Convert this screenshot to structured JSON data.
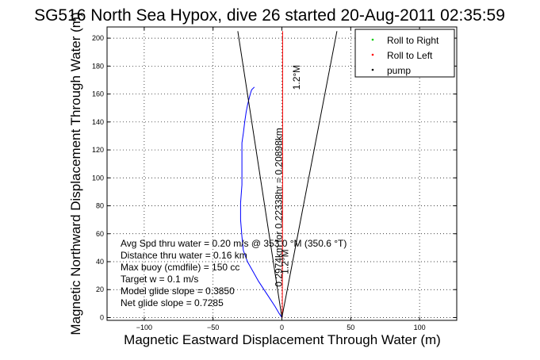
{
  "chart_data": {
    "type": "line",
    "title": "SG516 North Sea Hypox, dive 26 started 20-Aug-2011 02:35:59",
    "xlabel": "Magnetic Eastward Displacement Through Water (m)",
    "ylabel": "Magnetic Northward Displacement Through Water (m)",
    "xlim": [
      -127,
      127
    ],
    "ylim": [
      -2,
      208
    ],
    "xticks": [
      -100,
      -50,
      0,
      50,
      100
    ],
    "xtick_labels": [
      "−100",
      "−50",
      "0",
      "50",
      "100"
    ],
    "yticks": [
      0,
      20,
      40,
      60,
      80,
      100,
      120,
      140,
      160,
      180,
      200
    ],
    "ytick_labels": [
      "0",
      "20",
      "40",
      "60",
      "80",
      "100",
      "120",
      "140",
      "160",
      "180",
      "200"
    ],
    "grid": true,
    "legend_position": "top-right",
    "legend": [
      {
        "label": "Roll to Right",
        "color": "#00cc00"
      },
      {
        "label": "Roll to Left",
        "color": "#ff0000"
      },
      {
        "label": "pump",
        "color": "#000000"
      }
    ],
    "series": [
      {
        "color": "#0000ff",
        "x": [
          0,
          -2,
          -5,
          -9,
          -13,
          -17,
          -21,
          -25,
          -28,
          -29,
          -30,
          -30,
          -29,
          -29,
          -29,
          -29,
          -28,
          -27,
          -26,
          -25,
          -24,
          -23,
          -22,
          -20
        ],
        "y": [
          0,
          3,
          8,
          14,
          20,
          26,
          33,
          40,
          48,
          58,
          70,
          82,
          95,
          105,
          115,
          125,
          132,
          140,
          147,
          152,
          156,
          160,
          163,
          165
        ]
      },
      {
        "color": "#ff0000",
        "x": [
          0.3,
          0.4,
          0.5,
          0.5,
          0.5
        ],
        "y": [
          0,
          50,
          100,
          150,
          205
        ]
      },
      {
        "color": "#000000",
        "x": [
          0,
          40
        ],
        "y": [
          0,
          205
        ]
      },
      {
        "color": "#000000",
        "x": [
          0,
          -32
        ],
        "y": [
          0,
          205
        ]
      }
    ],
    "annotations": [
      {
        "text": "0.2974km for 0.22338hr = 0.20898km",
        "x": 0,
        "y": 22,
        "rotation": -90
      },
      {
        "text": "1.2°M",
        "x": 4.5,
        "y": 31,
        "rotation": -90
      },
      {
        "text": "1.2°M",
        "x": 13,
        "y": 163,
        "rotation": -90
      }
    ],
    "stats": [
      "Avg Spd thru water =  0.20 m/s @ 353.0    °M (350.6 °T)",
      "Distance thru water =  0.16 km",
      "Max buoy (cmdfile) = 150 cc",
      "Target w = 0.1 m/s",
      "Model glide slope = 0.3850",
      "Net glide slope = 0.7285"
    ]
  }
}
